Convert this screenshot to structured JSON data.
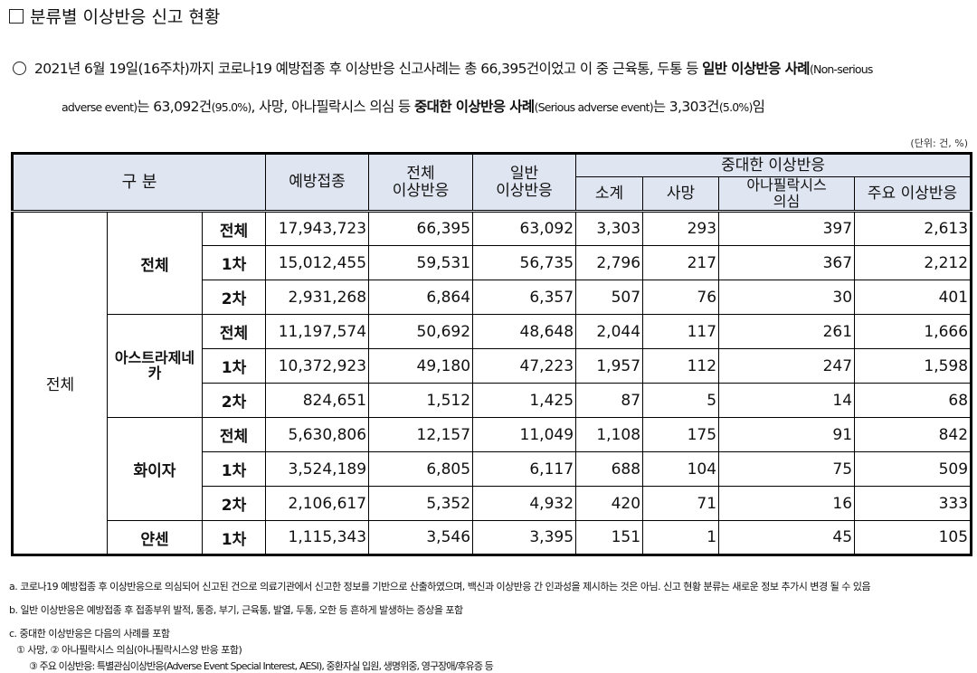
{
  "title": "분류별 이상반응 신고 현황",
  "summary": {
    "l1_a": "2021년 6월 19일(16주차)까지 코로나19 예방접종 후 이상반응 신고사례는 총 66,395건이었고 이 중 근육통, 두통 등 ",
    "l1_b": "일반 이상반응 사례",
    "l1_c": "(Non-serious",
    "l2_a": "adverse event)",
    "l2_b": "는 63,092건",
    "l2_c": "(95.0%)",
    "l2_d": ", 사망, 아나필락시스 의심 등 ",
    "l2_e": "중대한 이상반응 사례",
    "l2_f": "(Serious adverse event)",
    "l2_g": "는 3,303건",
    "l2_h": "(5.0%)",
    "l2_i": "임"
  },
  "unit": "(단위: 건, %)",
  "header": {
    "category": "구 분",
    "vaccinated": "예방접종",
    "total_ae": "전체\n이상반응",
    "general_ae": "일반\n이상반응",
    "serious_ae": "중대한 이상반응",
    "subtotal": "소계",
    "death": "사망",
    "anaphylaxis": "아나필락시스\n의심",
    "major_ae": "주요 이상반응"
  },
  "rows": {
    "overall": "전체",
    "all_vaccine": "전체",
    "az": "아스트라제네카",
    "pfizer": "화이자",
    "janssen": "얀센"
  },
  "table": [
    {
      "dose": "전체",
      "v": "17,943,723",
      "t": "66,395",
      "g": "63,092",
      "s": "3,303",
      "d": "293",
      "a": "397",
      "m": "2,613"
    },
    {
      "dose": "1차",
      "v": "15,012,455",
      "t": "59,531",
      "g": "56,735",
      "s": "2,796",
      "d": "217",
      "a": "367",
      "m": "2,212"
    },
    {
      "dose": "2차",
      "v": "2,931,268",
      "t": "6,864",
      "g": "6,357",
      "s": "507",
      "d": "76",
      "a": "30",
      "m": "401"
    },
    {
      "dose": "전체",
      "v": "11,197,574",
      "t": "50,692",
      "g": "48,648",
      "s": "2,044",
      "d": "117",
      "a": "261",
      "m": "1,666"
    },
    {
      "dose": "1차",
      "v": "10,372,923",
      "t": "49,180",
      "g": "47,223",
      "s": "1,957",
      "d": "112",
      "a": "247",
      "m": "1,598"
    },
    {
      "dose": "2차",
      "v": "824,651",
      "t": "1,512",
      "g": "1,425",
      "s": "87",
      "d": "5",
      "a": "14",
      "m": "68"
    },
    {
      "dose": "전체",
      "v": "5,630,806",
      "t": "12,157",
      "g": "11,049",
      "s": "1,108",
      "d": "175",
      "a": "91",
      "m": "842"
    },
    {
      "dose": "1차",
      "v": "3,524,189",
      "t": "6,805",
      "g": "6,117",
      "s": "688",
      "d": "104",
      "a": "75",
      "m": "509"
    },
    {
      "dose": "2차",
      "v": "2,106,617",
      "t": "5,352",
      "g": "4,932",
      "s": "420",
      "d": "71",
      "a": "16",
      "m": "333"
    },
    {
      "dose": "1차",
      "v": "1,115,343",
      "t": "3,546",
      "g": "3,395",
      "s": "151",
      "d": "1",
      "a": "45",
      "m": "105"
    }
  ],
  "notes": {
    "a": "a. 코로나19 예방접종 후 이상반응으로 의심되어 신고된 건으로 의료기관에서 신고한 정보를 기반으로 산출하였으며, 백신과 이상반응 간 인과성을 제시하는 것은 아님. 신고 현황 분류는 새로운 정보 추가시 변경 될 수 있음",
    "b": "b. 일반 이상반응은 예방접종 후 접종부위 발적, 통증, 부기, 근육통, 발열, 두통, 오한 등 흔하게 발생하는 증상을 포함",
    "c": "c. 중대한 이상반응은 다음의 사례를 포함",
    "c1": "① 사망, ② 아나필락시스 의심(아나필락시스양 반응 포함)",
    "c3": "③ 주요 이상반응: 특별관심이상반응(Adverse Event Special Interest, AESI), 중환자실 입원, 생명위중, 영구장애/후유증 등"
  }
}
